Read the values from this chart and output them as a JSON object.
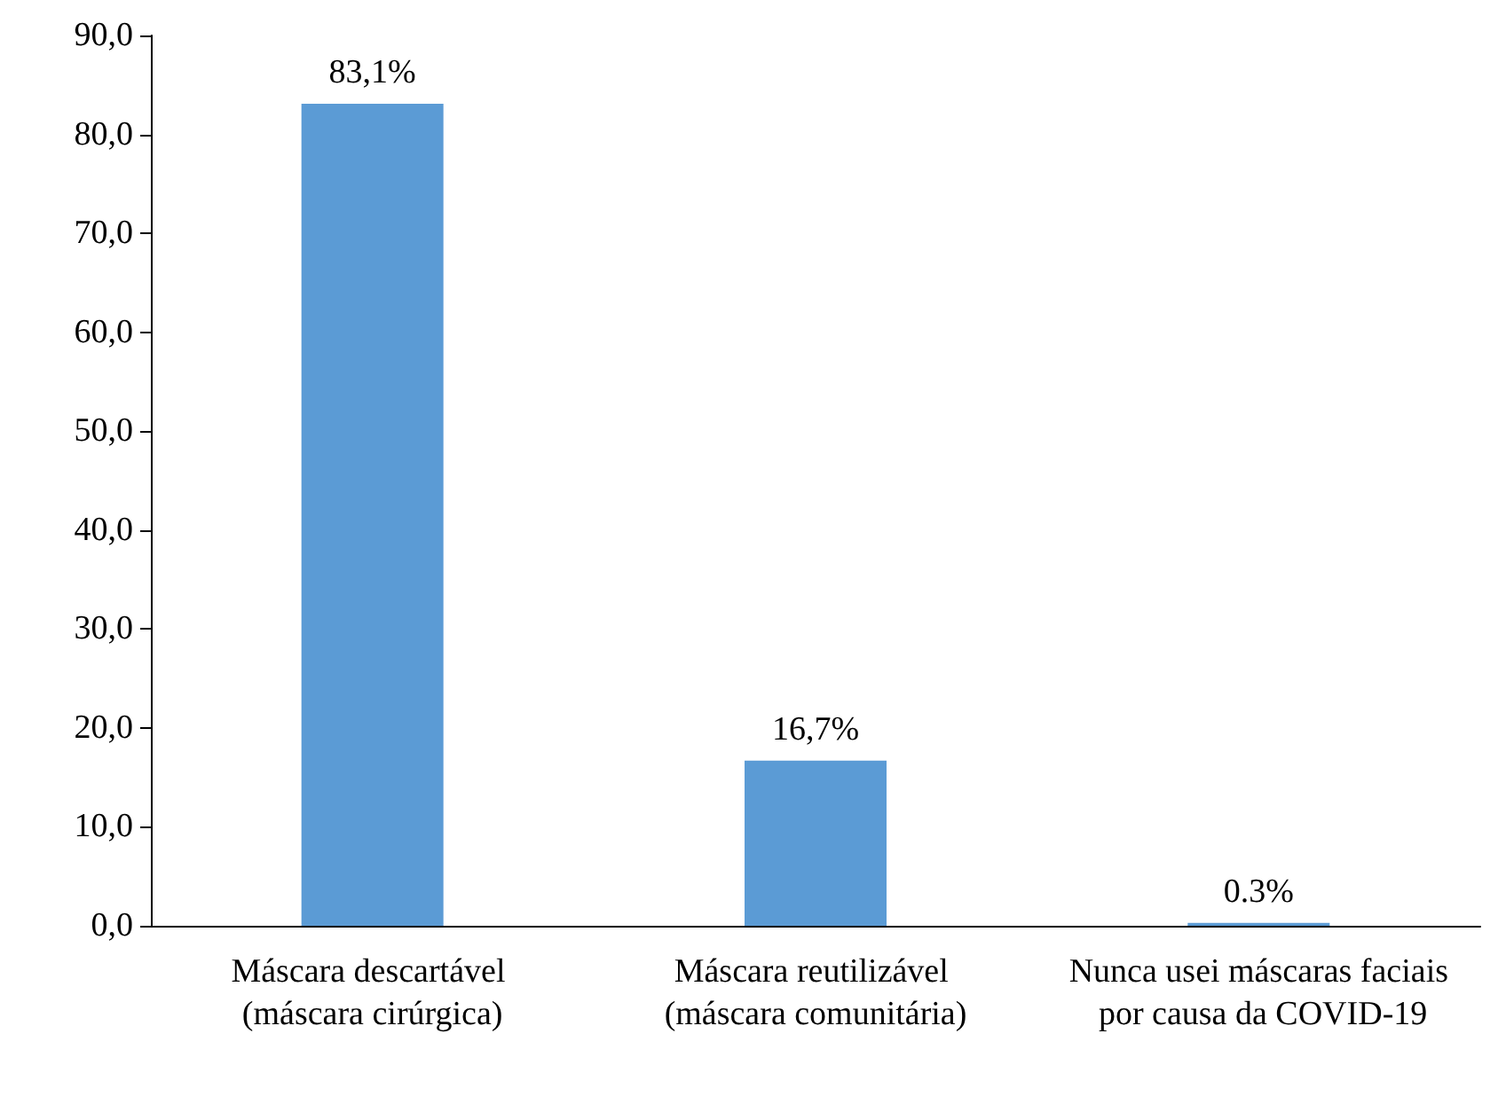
{
  "chart_data": {
    "type": "bar",
    "categories": [
      "Máscara descartável (máscara cirúrgica)",
      "Máscara reutilizável (máscara comunitária)",
      "Nunca usei máscaras faciais por causa da COVID-19"
    ],
    "values": [
      83.1,
      16.7,
      0.3
    ],
    "color": "#5b9bd5",
    "value_labels": [
      "83,1%",
      "16,7%",
      "0.3%"
    ],
    "ylim": [
      0,
      90
    ],
    "yticks": [
      {
        "value": 0,
        "label": "0,0"
      },
      {
        "value": 10,
        "label": "10,0"
      },
      {
        "value": 20,
        "label": "20,0"
      },
      {
        "value": 30,
        "label": "30,0"
      },
      {
        "value": 40,
        "label": "40,0"
      },
      {
        "value": 50,
        "label": "50,0"
      },
      {
        "value": 60,
        "label": "60,0"
      },
      {
        "value": 70,
        "label": "70,0"
      },
      {
        "value": 80,
        "label": "80,0"
      },
      {
        "value": 90,
        "label": "90,0"
      }
    ],
    "grid": false
  }
}
